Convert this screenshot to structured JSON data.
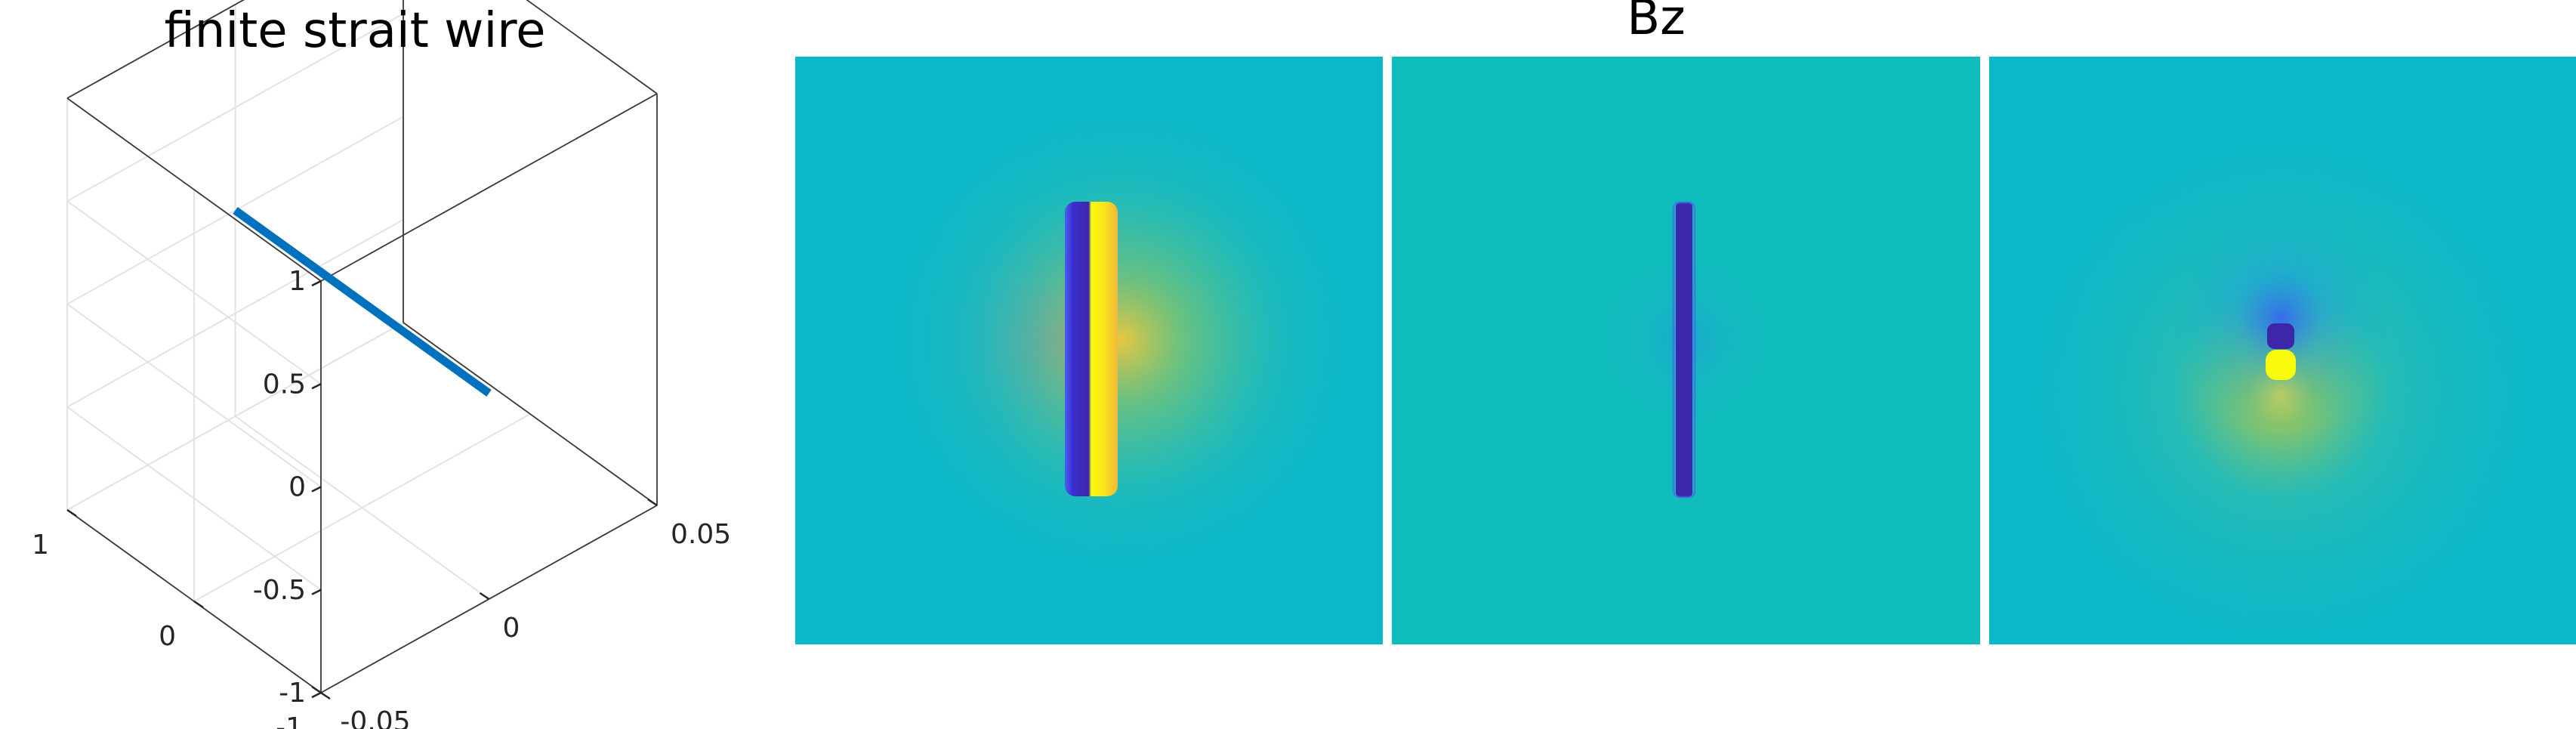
{
  "chart_data": [
    {
      "type": "line3d",
      "title": "finite strait wire",
      "grid": true,
      "axes": {
        "x": {
          "ticks": [
            "-0.05",
            "0",
            "0.05"
          ],
          "range": [
            -0.05,
            0.05
          ]
        },
        "y": {
          "ticks": [
            "-1",
            "0",
            "1"
          ],
          "range": [
            -1,
            1
          ]
        },
        "z": {
          "ticks": [
            "-1",
            "-0.5",
            "0",
            "0.5",
            "1"
          ],
          "range": [
            -1,
            1
          ]
        }
      },
      "series": [
        {
          "color": "#0072BD",
          "points": [
            [
              0,
              -1,
              0
            ],
            [
              0,
              1,
              0
            ]
          ]
        }
      ]
    },
    {
      "type": "heatmap",
      "title": "Bz",
      "colormap": "parula",
      "panels": [
        {
          "pattern": "dipole-horizontal"
        },
        {
          "pattern": "line-negative"
        },
        {
          "pattern": "dipole-vertical"
        }
      ]
    }
  ]
}
